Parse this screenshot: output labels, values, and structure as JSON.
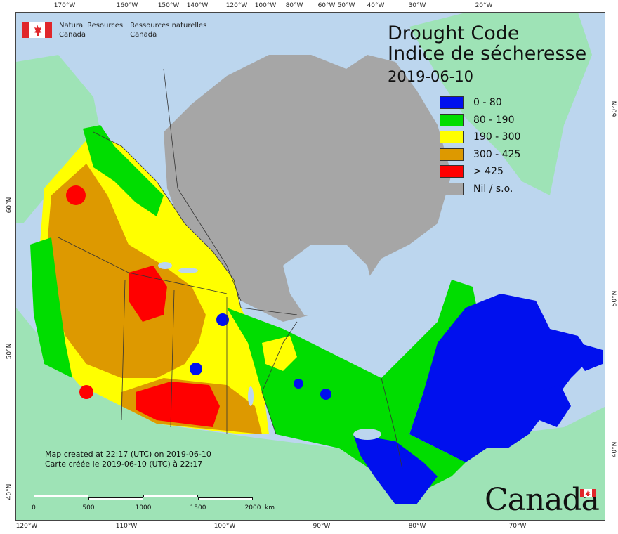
{
  "title": {
    "en": "Drought Code",
    "fr": "Indice de sécheresse",
    "date": "2019-06-10"
  },
  "agency": {
    "en_line1": "Natural Resources",
    "en_line2": "Canada",
    "fr_line1": "Ressources naturelles",
    "fr_line2": "Canada"
  },
  "legend": {
    "items": [
      {
        "label": "0 - 80",
        "color": "#0010ee"
      },
      {
        "label": "80 - 190",
        "color": "#00dd00"
      },
      {
        "label": "190 - 300",
        "color": "#ffff00"
      },
      {
        "label": "300 - 425",
        "color": "#dd9900"
      },
      {
        "label": "> 425",
        "color": "#ff0000"
      },
      {
        "label": "Nil / s.o.",
        "color": "#a6a6a6"
      }
    ]
  },
  "created": {
    "en": "Map created at 22:17 (UTC) on 2019-06-10",
    "fr": "Carte créée le 2019-06-10 (UTC) à 22:17"
  },
  "scale": {
    "labels": [
      "0",
      "500",
      "1000",
      "1500",
      "2000"
    ],
    "unit": "km"
  },
  "wordmark": "Canada",
  "graticule": {
    "top": [
      "170°W",
      "160°W",
      "150°W",
      "140°W",
      "120°W",
      "100°W",
      "80°W",
      "60°W",
      "50°W",
      "40°W",
      "30°W",
      "20°W"
    ],
    "bottom": [
      "120°W",
      "110°W",
      "100°W",
      "90°W",
      "80°W",
      "70°W"
    ],
    "left": [
      "60°N",
      "50°N",
      "40°N"
    ],
    "right": [
      "60°N",
      "50°N",
      "40°N"
    ]
  },
  "colors": {
    "ocean": "#bcd6ee",
    "land_outside": "#9ee3b6",
    "nil": "#a6a6a6",
    "flag_red": "#e0262b"
  }
}
